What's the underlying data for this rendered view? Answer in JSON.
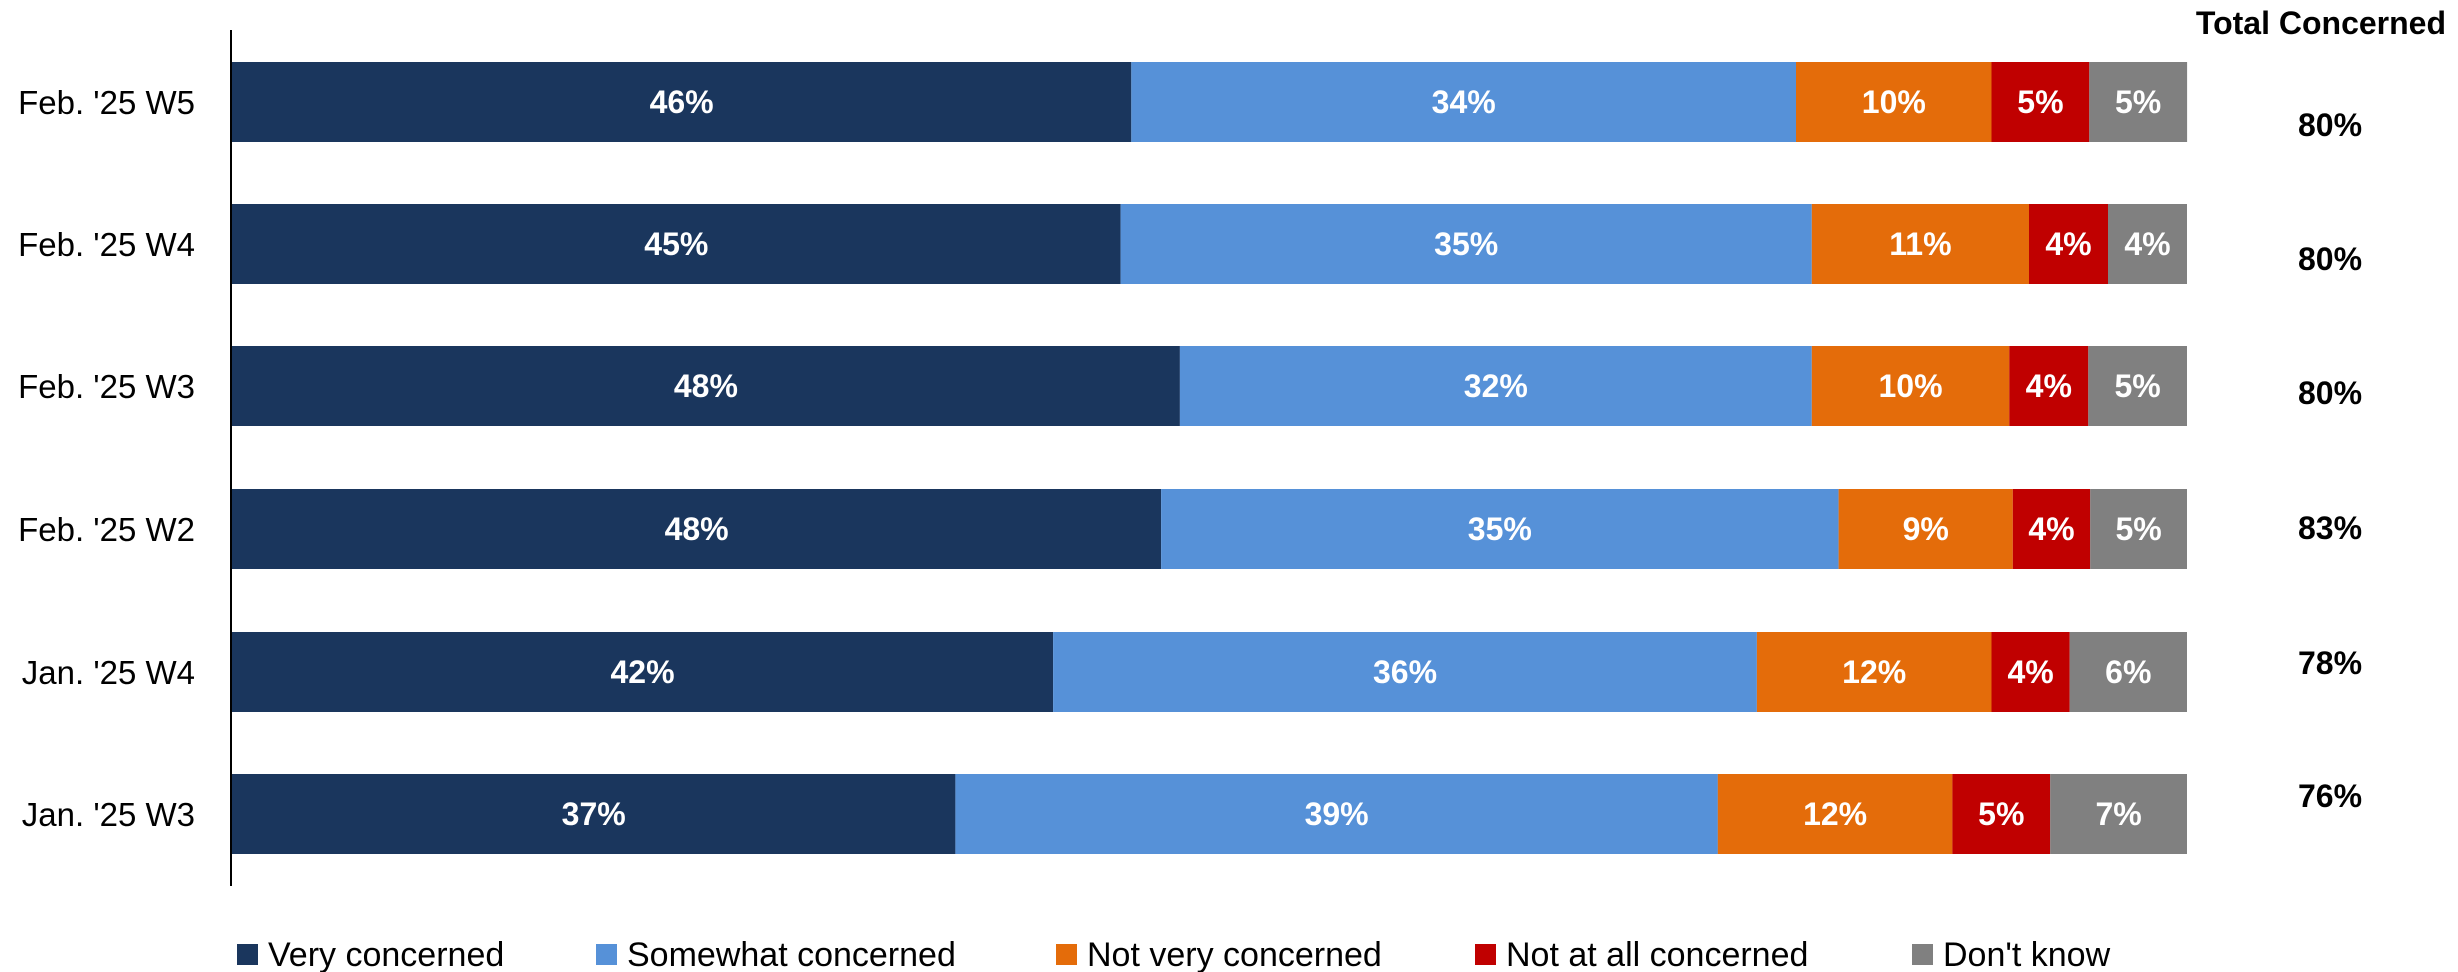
{
  "chart_data": {
    "type": "bar",
    "orientation": "horizontal",
    "stacked": true,
    "categories": [
      "Feb. '25 W5",
      "Feb. '25 W4",
      "Feb. '25 W3",
      "Feb. '25 W2",
      "Jan. '25 W4",
      "Jan. '25 W3"
    ],
    "series": [
      {
        "name": "Very concerned",
        "color": "#1a365d",
        "values": [
          46,
          45,
          48,
          48,
          42,
          37
        ]
      },
      {
        "name": "Somewhat concerned",
        "color": "#5691d8",
        "values": [
          34,
          35,
          32,
          35,
          36,
          39
        ]
      },
      {
        "name": "Not very concerned",
        "color": "#e46c0a",
        "values": [
          10,
          11,
          10,
          9,
          12,
          12
        ]
      },
      {
        "name": "Not at all concerned",
        "color": "#c00000",
        "values": [
          5,
          4,
          4,
          4,
          4,
          5
        ]
      },
      {
        "name": "Don't know",
        "color": "#808080",
        "values": [
          5,
          4,
          5,
          5,
          6,
          7
        ]
      }
    ],
    "value_suffix": "%",
    "total_column": {
      "title": "Total Concerned",
      "values": [
        "80%",
        "80%",
        "80%",
        "83%",
        "78%",
        "76%"
      ]
    },
    "legend_position": "bottom",
    "grid": false
  }
}
